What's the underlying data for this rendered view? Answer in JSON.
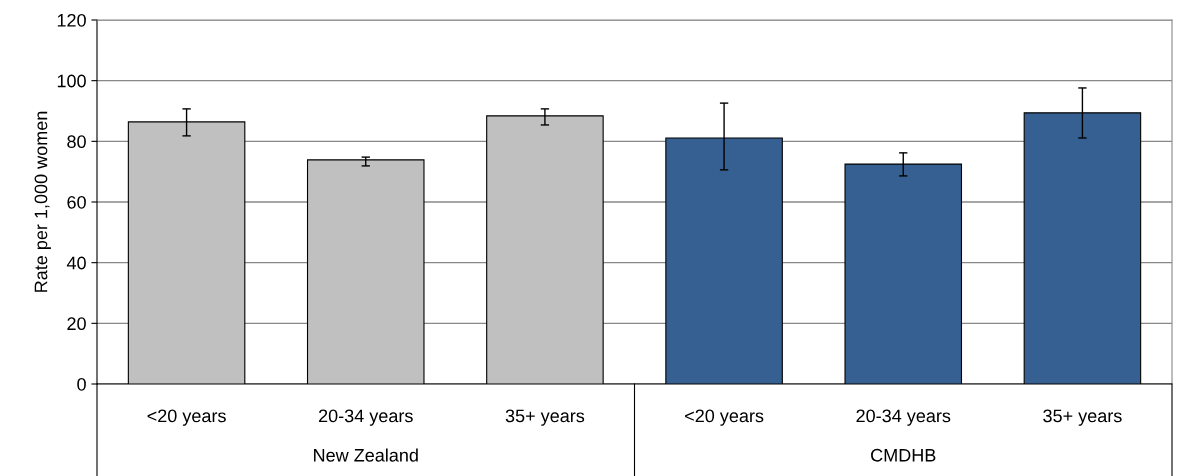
{
  "chart_data": {
    "type": "bar",
    "ylabel": "Rate per 1,000 women",
    "categories": [
      "<20 years",
      "20-34 years",
      "35+ years",
      "<20 years",
      "20-34 years",
      "35+ years"
    ],
    "values": [
      86.4,
      73.9,
      88.4,
      81.1,
      72.5,
      89.4
    ],
    "colors": [
      "#c0c0c0",
      "#c0c0c0",
      "#c0c0c0",
      "#376092",
      "#376092",
      "#376092"
    ],
    "errors": [
      [
        81.8,
        90.7
      ],
      [
        71.9,
        74.8
      ],
      [
        85.4,
        90.7
      ],
      [
        70.6,
        92.6
      ],
      [
        68.6,
        76.2
      ],
      [
        81.1,
        97.6
      ]
    ],
    "annotations": [
      "New Zealand",
      "CMDHB"
    ],
    "ylim": [
      0,
      120
    ],
    "yticks": [
      0,
      20,
      40,
      60,
      80,
      100,
      120
    ],
    "grid": "y",
    "legend": false
  }
}
